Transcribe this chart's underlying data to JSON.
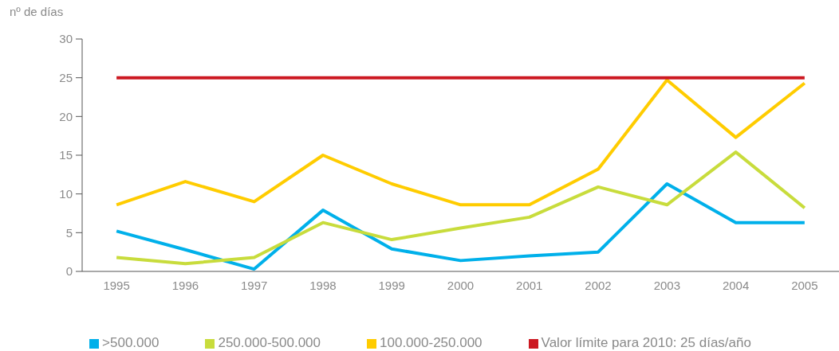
{
  "chart_data": {
    "type": "line",
    "ylabel": "nº de días",
    "categories": [
      "1995",
      "1996",
      "1997",
      "1998",
      "1999",
      "2000",
      "2001",
      "2002",
      "2003",
      "2004",
      "2005"
    ],
    "series": [
      {
        "name": ">500.000",
        "color": "#00b0ea",
        "values": [
          5.2,
          2.8,
          0.3,
          7.9,
          2.9,
          1.4,
          2.0,
          2.5,
          11.3,
          6.3,
          6.3
        ]
      },
      {
        "name": "250.000-500.000",
        "color": "#c8dc3c",
        "values": [
          1.8,
          1.0,
          1.8,
          6.3,
          4.1,
          5.6,
          7.0,
          10.9,
          8.6,
          15.4,
          8.2
        ]
      },
      {
        "name": "100.000-250.000",
        "color": "#ffcc00",
        "values": [
          8.6,
          11.6,
          9.0,
          15.0,
          11.3,
          8.6,
          8.6,
          13.2,
          24.7,
          17.3,
          24.3
        ]
      },
      {
        "name": "Valor límite para 2010: 25 días/año",
        "color": "#cc1821",
        "values": [
          25,
          25,
          25,
          25,
          25,
          25,
          25,
          25,
          25,
          25,
          25
        ]
      }
    ],
    "ylim": [
      0,
      30
    ],
    "yticks": [
      0,
      5,
      10,
      15,
      20,
      25,
      30
    ],
    "grid": false,
    "legend": "bottom",
    "marker": "none",
    "line_style": "solid"
  }
}
